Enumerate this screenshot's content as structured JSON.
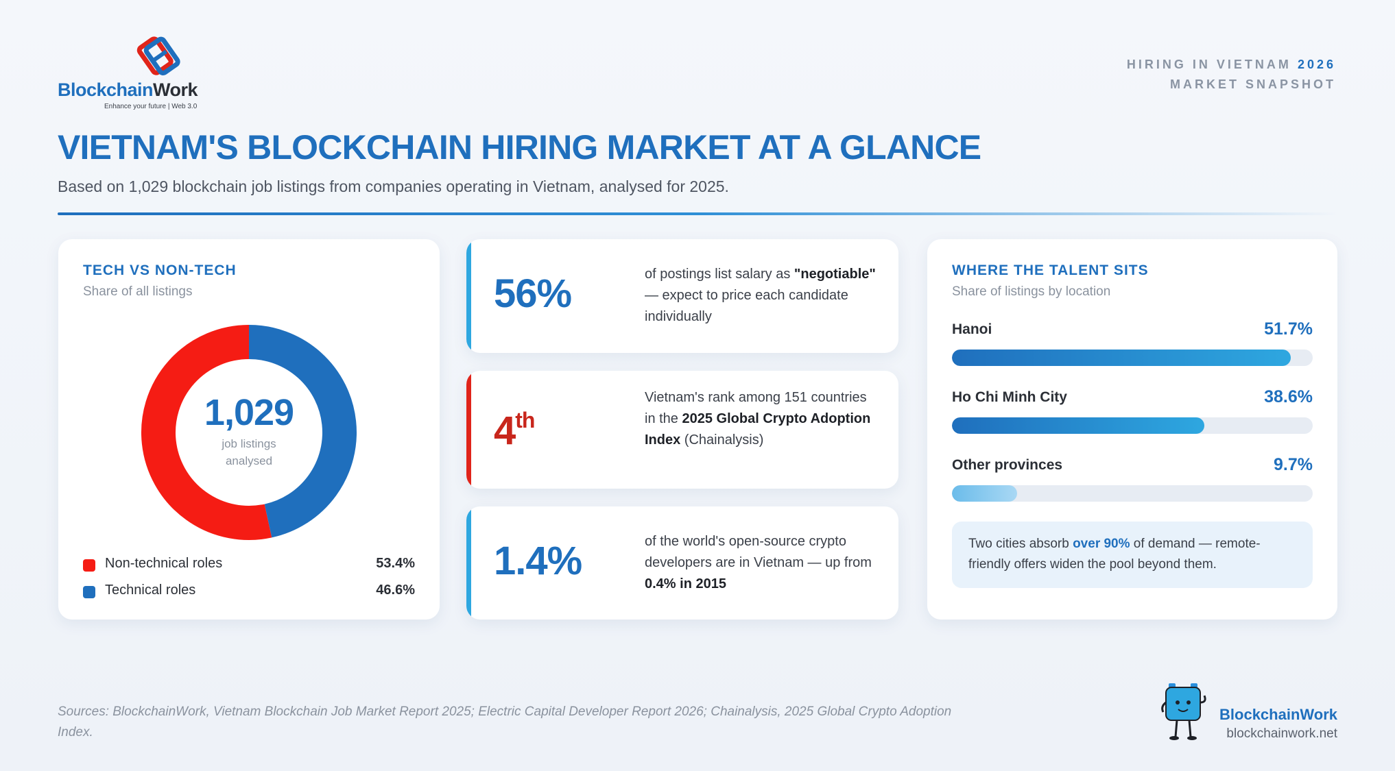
{
  "header": {
    "logo_word_1": "Blockchain",
    "logo_word_2": "Work",
    "logo_tagline": "Enhance your future | Web 3.0",
    "snapshot_line1": "HIRING IN VIETNAM",
    "snapshot_year": "2026",
    "snapshot_line2": "MARKET SNAPSHOT",
    "title": "VIETNAM'S BLOCKCHAIN HIRING MARKET AT A GLANCE",
    "subtitle": "Based on 1,029 blockchain job listings from companies operating in Vietnam, analysed for 2025."
  },
  "colors": {
    "brand_blue": "#1f6fbd",
    "red": "#f51c14",
    "cyan": "#2ea7e0",
    "dark_red": "#c8261c"
  },
  "tech_card": {
    "heading": "TECH VS NON-TECH",
    "subheading": "Share of all listings",
    "total": "1,029",
    "total_caption": "job listings analysed"
  },
  "chart_data": {
    "type": "pie",
    "title": "TECH VS NON-TECH",
    "subtitle": "Share of all listings",
    "center_label": "1,029",
    "labels": [
      "Non-technical roles",
      "Technical roles"
    ],
    "values": [
      53.4,
      46.6
    ],
    "value_labels": [
      "53.4%",
      "46.6%"
    ],
    "colors": [
      "#f51c14",
      "#1f6fbd"
    ],
    "legend_placement": "bottom"
  },
  "stats": [
    {
      "value": "56%",
      "color": "#1f6fbd",
      "bar_color": "#2ea7e0",
      "text_pre": "of postings list salary as ",
      "text_bold": "\"negotiable\"",
      "text_post": " — expect to price each candidate individually"
    },
    {
      "value": "4",
      "value_suffix": "th",
      "color": "#c8261c",
      "bar_color": "#e0241a",
      "text_pre": "Vietnam's rank among 151 countries in the ",
      "text_bold": "2025 Global Crypto Adoption Index",
      "text_post": " (Chainalysis)"
    },
    {
      "value": "1.4%",
      "color": "#1f6fbd",
      "bar_color": "#2ea7e0",
      "text_pre": "of the world's open-source crypto developers are in Vietnam — up from ",
      "text_bold": "0.4% in 2015",
      "text_post": ""
    }
  ],
  "location_card": {
    "heading": "WHERE THE TALENT SITS",
    "subheading": "Share of listings by location",
    "locations": [
      {
        "name": "Hanoi",
        "label": "51.7%",
        "fraction": 0.94
      },
      {
        "name": "Ho Chi Minh City",
        "label": "38.6%",
        "fraction": 0.7
      },
      {
        "name": "Other provinces",
        "label": "9.7%",
        "fraction": 0.18
      }
    ],
    "note_pre": "Two cities absorb ",
    "note_bold": "over 90%",
    "note_post": " of demand — remote-friendly offers widen the pool beyond them."
  },
  "footer": {
    "sources": "Sources: BlockchainWork, Vietnam Blockchain Job Market Report 2025; Electric Capital Developer Report 2026; Chainalysis, 2025 Global Crypto Adoption Index.",
    "brand_name": "BlockchainWork",
    "brand_url": "blockchainwork.net"
  }
}
